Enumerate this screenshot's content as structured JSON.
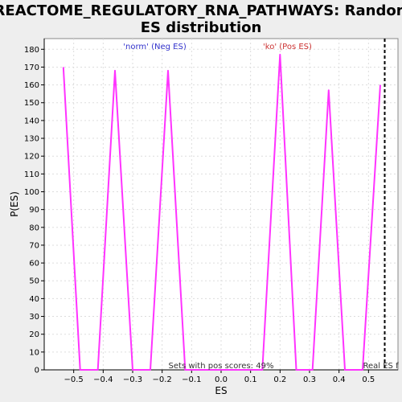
{
  "chart_data": {
    "type": "line",
    "title_line1": "REACTOME_REGULATORY_RNA_PATHWAYS: Random",
    "title_line2": "ES distribution",
    "xlabel": "ES",
    "ylabel": "P(ES)",
    "xlim": [
      -0.6,
      0.6
    ],
    "ylim": [
      0,
      186
    ],
    "x_ticks": [
      -0.5,
      -0.4,
      -0.3,
      -0.2,
      -0.1,
      0.0,
      0.1,
      0.2,
      0.3,
      0.4,
      0.5
    ],
    "x_tick_labels": [
      "−0.5",
      "−0.4",
      "−0.3",
      "−0.2",
      "−0.1",
      "0.0",
      "0.1",
      "0.2",
      "0.3",
      "0.4",
      "0.5"
    ],
    "y_ticks": [
      0,
      10,
      20,
      30,
      40,
      50,
      60,
      70,
      80,
      90,
      100,
      110,
      120,
      130,
      140,
      150,
      160,
      170,
      180
    ],
    "grid": true,
    "series": [
      {
        "color": "#ff33ff",
        "x": [
          -0.535,
          -0.478,
          -0.418,
          -0.36,
          -0.3,
          -0.24,
          -0.18,
          -0.122,
          -0.063,
          0.0,
          0.06,
          0.14,
          0.2,
          0.255,
          0.31,
          0.365,
          0.42,
          0.48,
          0.54
        ],
        "y": [
          170,
          0,
          0,
          168,
          0,
          0,
          168,
          0,
          0,
          0,
          0,
          0,
          177,
          0,
          0,
          157,
          0,
          0,
          160
        ]
      }
    ],
    "annotations": {
      "neg_label": "'norm' (Neg ES)",
      "neg_color": "#3333cc",
      "pos_label": "'ko' (Pos ES)",
      "pos_color": "#cc3333",
      "pos_scores_text": "Sets with pos scores: 49%",
      "real_es_label": "Real ES f",
      "real_es_x": 0.555
    }
  }
}
